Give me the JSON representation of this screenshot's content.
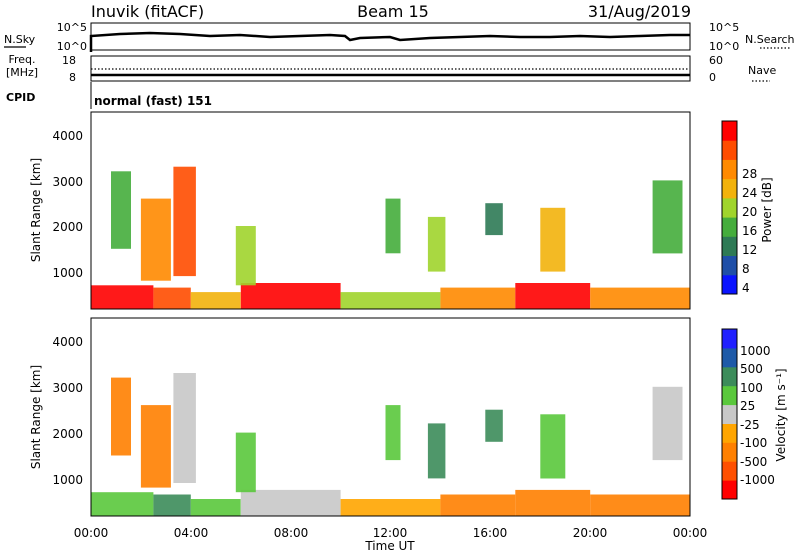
{
  "header": {
    "site": "Inuvik (fitACF)",
    "beam": "Beam 15",
    "date": "31/Aug/2019"
  },
  "top_panels": {
    "nsky_label": "N.Sky",
    "nsky_ticks": [
      "10^5",
      "10^0"
    ],
    "nsearch_label": "N.Search",
    "nsearch_ticks": [
      "10^5",
      "10^0"
    ],
    "freq_label": "Freq.",
    "freq_unit": "[MHz]",
    "freq_ticks": [
      "18",
      "8"
    ],
    "nave_label": "Nave",
    "nave_ticks": [
      "60",
      "0"
    ],
    "cpid_label": "CPID",
    "cpid_value": "normal (fast) 151"
  },
  "colors": {
    "power": [
      "#0a14ff",
      "#1f4fa8",
      "#2e7a55",
      "#45ad3c",
      "#a0d42c",
      "#f2b20c",
      "#ff8a00",
      "#ff4d00",
      "#ff0000"
    ],
    "velocity": [
      "#2020ff",
      "#1e5aa8",
      "#3c8c5a",
      "#5ac83c",
      "#c8c8c8",
      "#ffa500",
      "#ff8000",
      "#ff5000",
      "#ff0000"
    ]
  },
  "chart_data": [
    {
      "type": "heatmap",
      "name": "power",
      "ylabel": "Slant Range [km]",
      "y_ticks": [
        "4000",
        "3000",
        "2000",
        "1000"
      ],
      "ylim": [
        180,
        4500
      ],
      "x_ticks": [
        "00:00",
        "04:00",
        "08:00",
        "12:00",
        "16:00",
        "20:00",
        "00:00"
      ],
      "xlim_hours": [
        0,
        24
      ],
      "colorbar_label": "Power [dB]",
      "colorbar_ticks": [
        "28",
        "24",
        "20",
        "16",
        "12",
        "8",
        "4"
      ],
      "colorbar_range": [
        0,
        30
      ],
      "bands": [
        {
          "x": [
            0.0,
            2.5
          ],
          "y": [
            180,
            700
          ],
          "level": 8
        },
        {
          "x": [
            2.5,
            4.0
          ],
          "y": [
            180,
            650
          ],
          "level": 7
        },
        {
          "x": [
            4.0,
            6.0
          ],
          "y": [
            180,
            550
          ],
          "level": 5
        },
        {
          "x": [
            6.0,
            10.0
          ],
          "y": [
            180,
            750
          ],
          "level": 8
        },
        {
          "x": [
            10.0,
            14.0
          ],
          "y": [
            180,
            550
          ],
          "level": 4
        },
        {
          "x": [
            14.0,
            17.0
          ],
          "y": [
            180,
            650
          ],
          "level": 6
        },
        {
          "x": [
            17.0,
            20.0
          ],
          "y": [
            180,
            750
          ],
          "level": 8
        },
        {
          "x": [
            20.0,
            24.0
          ],
          "y": [
            180,
            650
          ],
          "level": 6
        },
        {
          "x": [
            0.8,
            1.6
          ],
          "y": [
            1500,
            3200
          ],
          "level": 3
        },
        {
          "x": [
            2.0,
            3.2
          ],
          "y": [
            800,
            2600
          ],
          "level": 6
        },
        {
          "x": [
            3.3,
            4.2
          ],
          "y": [
            900,
            3300
          ],
          "level": 7
        },
        {
          "x": [
            5.8,
            6.6
          ],
          "y": [
            700,
            2000
          ],
          "level": 4
        },
        {
          "x": [
            11.8,
            12.4
          ],
          "y": [
            1400,
            2600
          ],
          "level": 3
        },
        {
          "x": [
            13.5,
            14.2
          ],
          "y": [
            1000,
            2200
          ],
          "level": 4
        },
        {
          "x": [
            15.8,
            16.5
          ],
          "y": [
            1800,
            2500
          ],
          "level": 2
        },
        {
          "x": [
            18.0,
            19.0
          ],
          "y": [
            1000,
            2400
          ],
          "level": 5
        },
        {
          "x": [
            22.5,
            23.7
          ],
          "y": [
            1400,
            3000
          ],
          "level": 3
        }
      ]
    },
    {
      "type": "heatmap",
      "name": "velocity",
      "ylabel": "Slant Range [km]",
      "y_ticks": [
        "4000",
        "3000",
        "2000",
        "1000"
      ],
      "ylim": [
        180,
        4500
      ],
      "x_ticks": [
        "00:00",
        "04:00",
        "08:00",
        "12:00",
        "16:00",
        "20:00",
        "00:00"
      ],
      "xlim_hours": [
        0,
        24
      ],
      "xlabel": "Time UT",
      "colorbar_label": "Velocity [m s⁻¹]",
      "colorbar_ticks": [
        "1000",
        "500",
        "100",
        "25",
        "-25",
        "-100",
        "-500",
        "-1000"
      ],
      "colorbar_range": [
        -1200,
        1200
      ],
      "bands": [
        {
          "x": [
            0.0,
            2.5
          ],
          "y": [
            180,
            700
          ],
          "level": 3
        },
        {
          "x": [
            2.5,
            4.0
          ],
          "y": [
            180,
            650
          ],
          "level": 2
        },
        {
          "x": [
            4.0,
            6.0
          ],
          "y": [
            180,
            550
          ],
          "level": 3
        },
        {
          "x": [
            6.0,
            10.0
          ],
          "y": [
            180,
            750
          ],
          "level": 4
        },
        {
          "x": [
            10.0,
            14.0
          ],
          "y": [
            180,
            550
          ],
          "level": 5
        },
        {
          "x": [
            14.0,
            17.0
          ],
          "y": [
            180,
            650
          ],
          "level": 6
        },
        {
          "x": [
            17.0,
            20.0
          ],
          "y": [
            180,
            750
          ],
          "level": 6
        },
        {
          "x": [
            20.0,
            24.0
          ],
          "y": [
            180,
            650
          ],
          "level": 6
        },
        {
          "x": [
            0.8,
            1.6
          ],
          "y": [
            1500,
            3200
          ],
          "level": 6
        },
        {
          "x": [
            2.0,
            3.2
          ],
          "y": [
            800,
            2600
          ],
          "level": 6
        },
        {
          "x": [
            3.3,
            4.2
          ],
          "y": [
            900,
            3300
          ],
          "level": 4
        },
        {
          "x": [
            5.8,
            6.6
          ],
          "y": [
            700,
            2000
          ],
          "level": 3
        },
        {
          "x": [
            11.8,
            12.4
          ],
          "y": [
            1400,
            2600
          ],
          "level": 3
        },
        {
          "x": [
            13.5,
            14.2
          ],
          "y": [
            1000,
            2200
          ],
          "level": 2
        },
        {
          "x": [
            15.8,
            16.5
          ],
          "y": [
            1800,
            2500
          ],
          "level": 2
        },
        {
          "x": [
            18.0,
            19.0
          ],
          "y": [
            1000,
            2400
          ],
          "level": 3
        },
        {
          "x": [
            22.5,
            23.7
          ],
          "y": [
            1400,
            3000
          ],
          "level": 4
        }
      ]
    }
  ]
}
